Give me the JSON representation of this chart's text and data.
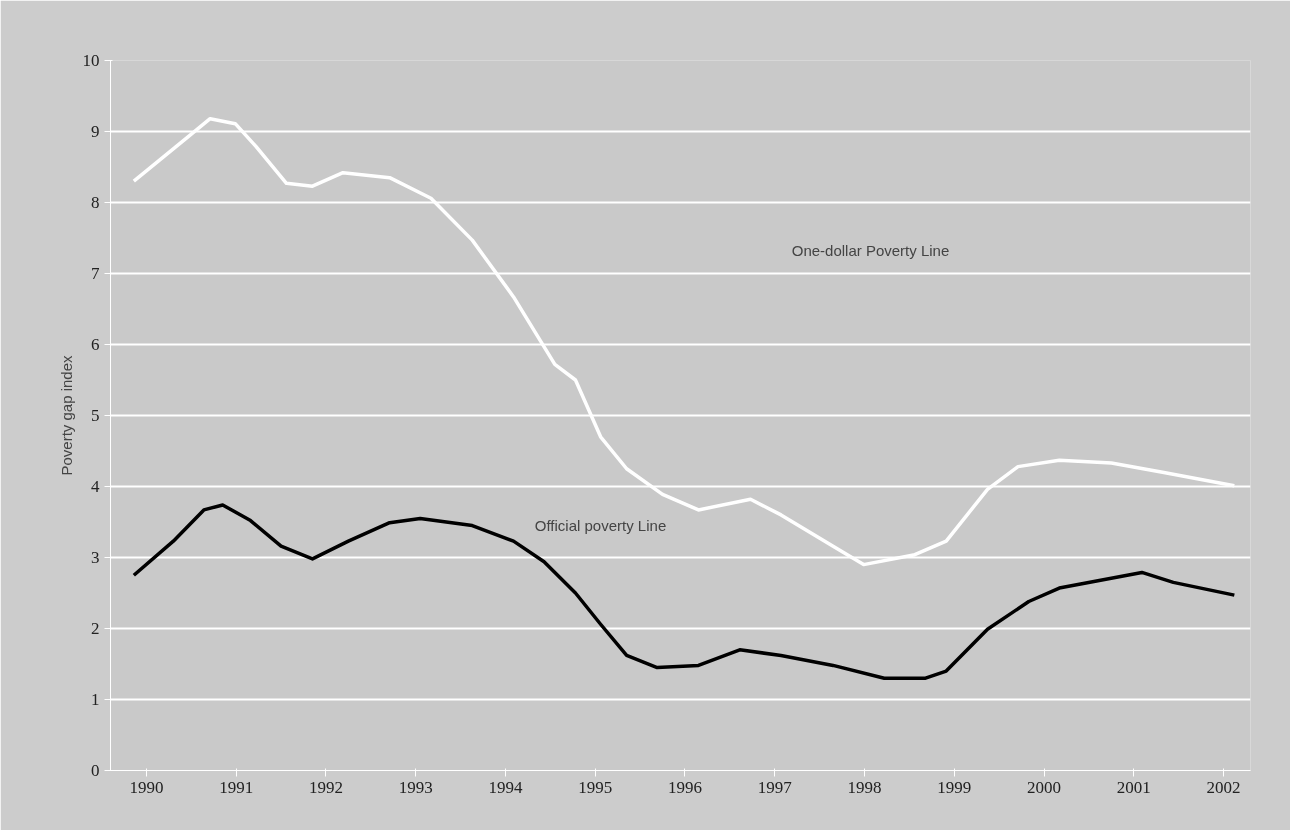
{
  "chart_data": {
    "type": "line",
    "ylabel": "Poverty gap index",
    "xlim": [
      1989.6,
      2002.3
    ],
    "xticks": [
      1990,
      1991,
      1992,
      1993,
      1994,
      1995,
      1996,
      1997,
      1998,
      1999,
      2000,
      2001,
      2002
    ],
    "ylim": [
      0,
      10
    ],
    "yticks": [
      0,
      1,
      2,
      3,
      4,
      5,
      6,
      7,
      8,
      9,
      10
    ],
    "grid": "y",
    "marker": "none",
    "line_style": "solid",
    "series": [
      {
        "color": "#ffffff",
        "x": [
          1989.86,
          1990.47,
          1990.71,
          1990.99,
          1991.22,
          1991.56,
          1991.85,
          1992.19,
          1992.71,
          1993.17,
          1993.63,
          1994.09,
          1994.55,
          1994.78,
          1995.06,
          1995.35,
          1995.75,
          1996.15,
          1996.73,
          1997.07,
          1997.65,
          1997.99,
          1998.56,
          1998.91,
          1999.37,
          1999.71,
          2000.17,
          2000.75,
          2001.32,
          2002.12
        ],
        "values": [
          8.3,
          8.93,
          9.18,
          9.11,
          8.79,
          8.27,
          8.23,
          8.42,
          8.35,
          8.06,
          7.47,
          6.67,
          5.72,
          5.5,
          4.7,
          4.25,
          3.89,
          3.67,
          3.82,
          3.6,
          3.16,
          2.9,
          3.04,
          3.23,
          3.96,
          4.28,
          4.37,
          4.33,
          4.2,
          4.01
        ]
      },
      {
        "color": "#000000",
        "x": [
          1989.86,
          1990.3,
          1990.64,
          1990.85,
          1991.16,
          1991.5,
          1991.85,
          1992.25,
          1992.71,
          1993.05,
          1993.63,
          1994.09,
          1994.43,
          1994.78,
          1995.06,
          1995.35,
          1995.69,
          1996.15,
          1996.61,
          1997.07,
          1997.65,
          1998.22,
          1998.68,
          1998.91,
          1999.37,
          1999.83,
          2000.17,
          2000.63,
          2001.09,
          2001.44,
          2002.12
        ],
        "values": [
          2.75,
          3.23,
          3.67,
          3.74,
          3.52,
          3.16,
          2.98,
          3.23,
          3.49,
          3.55,
          3.45,
          3.23,
          2.94,
          2.5,
          2.06,
          1.62,
          1.45,
          1.48,
          1.7,
          1.62,
          1.48,
          1.3,
          1.3,
          1.4,
          1.99,
          2.38,
          2.57,
          2.68,
          2.79,
          2.65,
          2.47
        ]
      }
    ],
    "annotations": [
      "One-dollar Poverty Line",
      "Official poverty Line"
    ]
  }
}
